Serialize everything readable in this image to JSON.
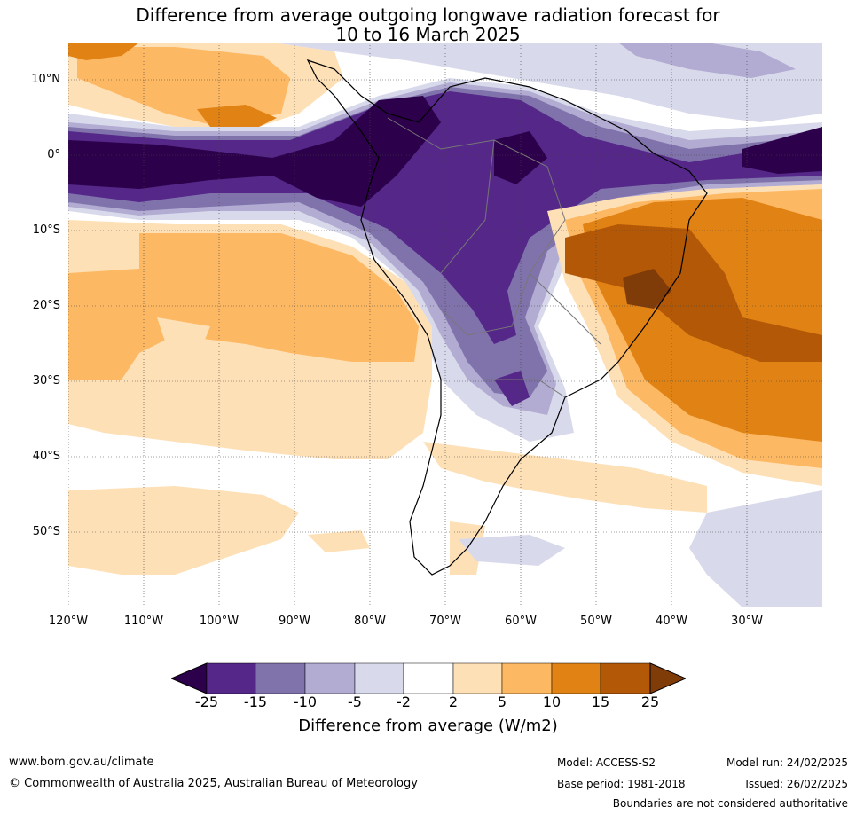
{
  "title": {
    "line1": "Difference from average outgoing longwave radiation forecast for",
    "line2": "10 to 16 March 2025"
  },
  "axes": {
    "lat_labels": [
      "10°N",
      "0°",
      "10°S",
      "20°S",
      "30°S",
      "40°S",
      "50°S"
    ],
    "lon_labels": [
      "120°W",
      "110°W",
      "100°W",
      "90°W",
      "80°W",
      "70°W",
      "60°W",
      "50°W",
      "40°W",
      "30°W"
    ]
  },
  "colorbar": {
    "title": "Difference from average (W/m2)",
    "ticks": [
      "-25",
      "-15",
      "-10",
      "-5",
      "-2",
      "2",
      "5",
      "10",
      "15",
      "25"
    ],
    "colors": {
      "below_min": "#2d004b",
      "-25_-15": "#542788",
      "-15_-10": "#8073ac",
      "-10_-5": "#b2abd2",
      "-5_-2": "#d8daeb",
      "-2_2": "#ffffff",
      "2_5": "#fee0b6",
      "5_10": "#fdb863",
      "10_15": "#e08214",
      "15_25": "#b35806",
      "above_max": "#7f3b08"
    }
  },
  "footer": {
    "url": "www.bom.gov.au/climate",
    "copyright": "© Commonwealth of Australia 2025, Australian Bureau of Meteorology",
    "model": "Model: ACCESS-S2",
    "base_period": "Base period: 1981-2018",
    "model_run": "Model run: 24/02/2025",
    "issued": "Issued: 26/02/2025",
    "disclaimer": "Boundaries are not considered authoritative"
  }
}
